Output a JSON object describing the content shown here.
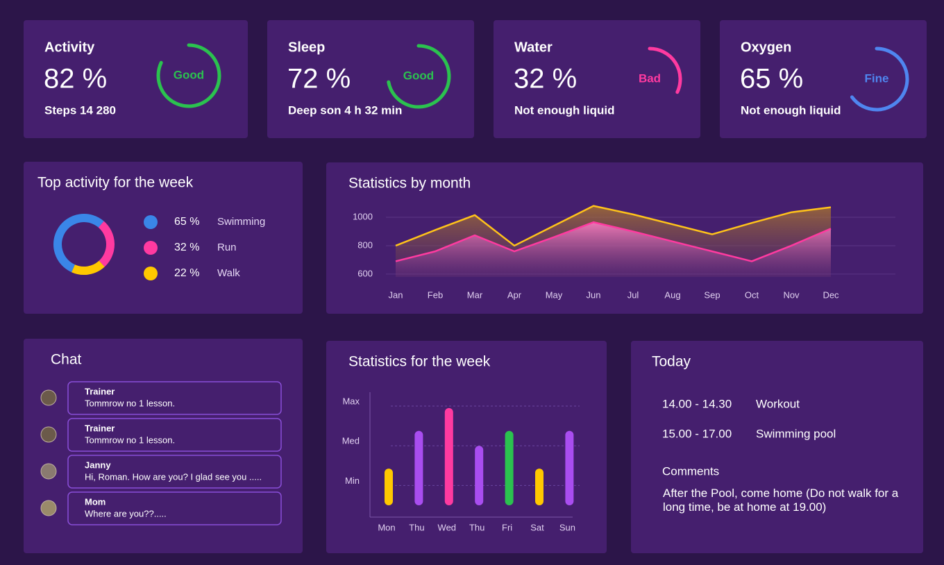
{
  "cards": [
    {
      "title": "Activity",
      "value": 82,
      "value_label": "82 %",
      "detail": "Steps 14 280",
      "status": "Good",
      "color": "#2bc24f"
    },
    {
      "title": "Sleep",
      "value": 72,
      "value_label": "72 %",
      "detail": "Deep son 4 h 32 min",
      "status": "Good",
      "color": "#2bc24f"
    },
    {
      "title": "Water",
      "value": 32,
      "value_label": "32 %",
      "detail": "Not enough liquid",
      "status": "Bad",
      "color": "#ff3aa0"
    },
    {
      "title": "Oxygen",
      "value": 65,
      "value_label": "65 %",
      "detail": "Not enough liquid",
      "status": "Fine",
      "color": "#4f86f0"
    }
  ],
  "top_activity": {
    "type": "donut",
    "title": "Top activity for the week",
    "categories": [
      "Swimming",
      "Run",
      "Walk"
    ],
    "values": [
      65,
      32,
      22
    ],
    "value_labels": [
      "65 %",
      "32 %",
      "22 %"
    ],
    "colors": [
      "#3a86e8",
      "#ff3aa0",
      "#ffc800"
    ]
  },
  "monthly": {
    "type": "line",
    "title": "Statistics by month",
    "categories": [
      "Jan",
      "Feb",
      "Mar",
      "Apr",
      "May",
      "Jun",
      "Jul",
      "Aug",
      "Sep",
      "Oct",
      "Nov",
      "Dec"
    ],
    "series": [
      {
        "color": "#ffc31a",
        "values": [
          800,
          910,
          1015,
          800,
          940,
          1080,
          1020,
          950,
          880,
          960,
          1035,
          1070
        ]
      },
      {
        "color": "#ff3aa0",
        "values": [
          690,
          760,
          873,
          760,
          860,
          965,
          900,
          830,
          760,
          690,
          800,
          920
        ]
      }
    ],
    "ylim": [
      580,
      1100
    ],
    "yticks": [
      600,
      800,
      1000
    ],
    "grid": true
  },
  "weekly": {
    "type": "bar",
    "title": "Statistics for the week",
    "categories": [
      "Mon",
      "Thu",
      "Wed",
      "Thu",
      "Fri",
      "Sat",
      "Sun"
    ],
    "values": [
      37,
      75,
      98,
      60,
      75,
      37,
      75
    ],
    "colors": [
      "#ffc800",
      "#a94df0",
      "#ff3aa0",
      "#a94df0",
      "#2bc24f",
      "#ffc800",
      "#a94df0"
    ],
    "ylim": [
      0,
      100
    ],
    "yticks": [
      {
        "value": 20,
        "label": "Min"
      },
      {
        "value": 60,
        "label": "Med"
      },
      {
        "value": 100,
        "label": "Max"
      }
    ],
    "grid": true
  },
  "chat": {
    "title": "Chat",
    "messages": [
      {
        "name": "Trainer",
        "text": "Tommrow no 1 lesson."
      },
      {
        "name": "Trainer",
        "text": "Tommrow no 1 lesson."
      },
      {
        "name": "Janny",
        "text": "Hi, Roman. How are you? I glad see you ....."
      },
      {
        "name": "Mom",
        "text": "Where are you??....."
      }
    ]
  },
  "today": {
    "title": "Today",
    "schedule": [
      {
        "time": "14.00 - 14.30",
        "task": "Workout"
      },
      {
        "time": "15.00 - 17.00",
        "task": "Swimming pool"
      }
    ],
    "comments_title": "Comments",
    "comments": "After the Pool, come home (Do not walk for a long time, be at home at 19.00)"
  }
}
